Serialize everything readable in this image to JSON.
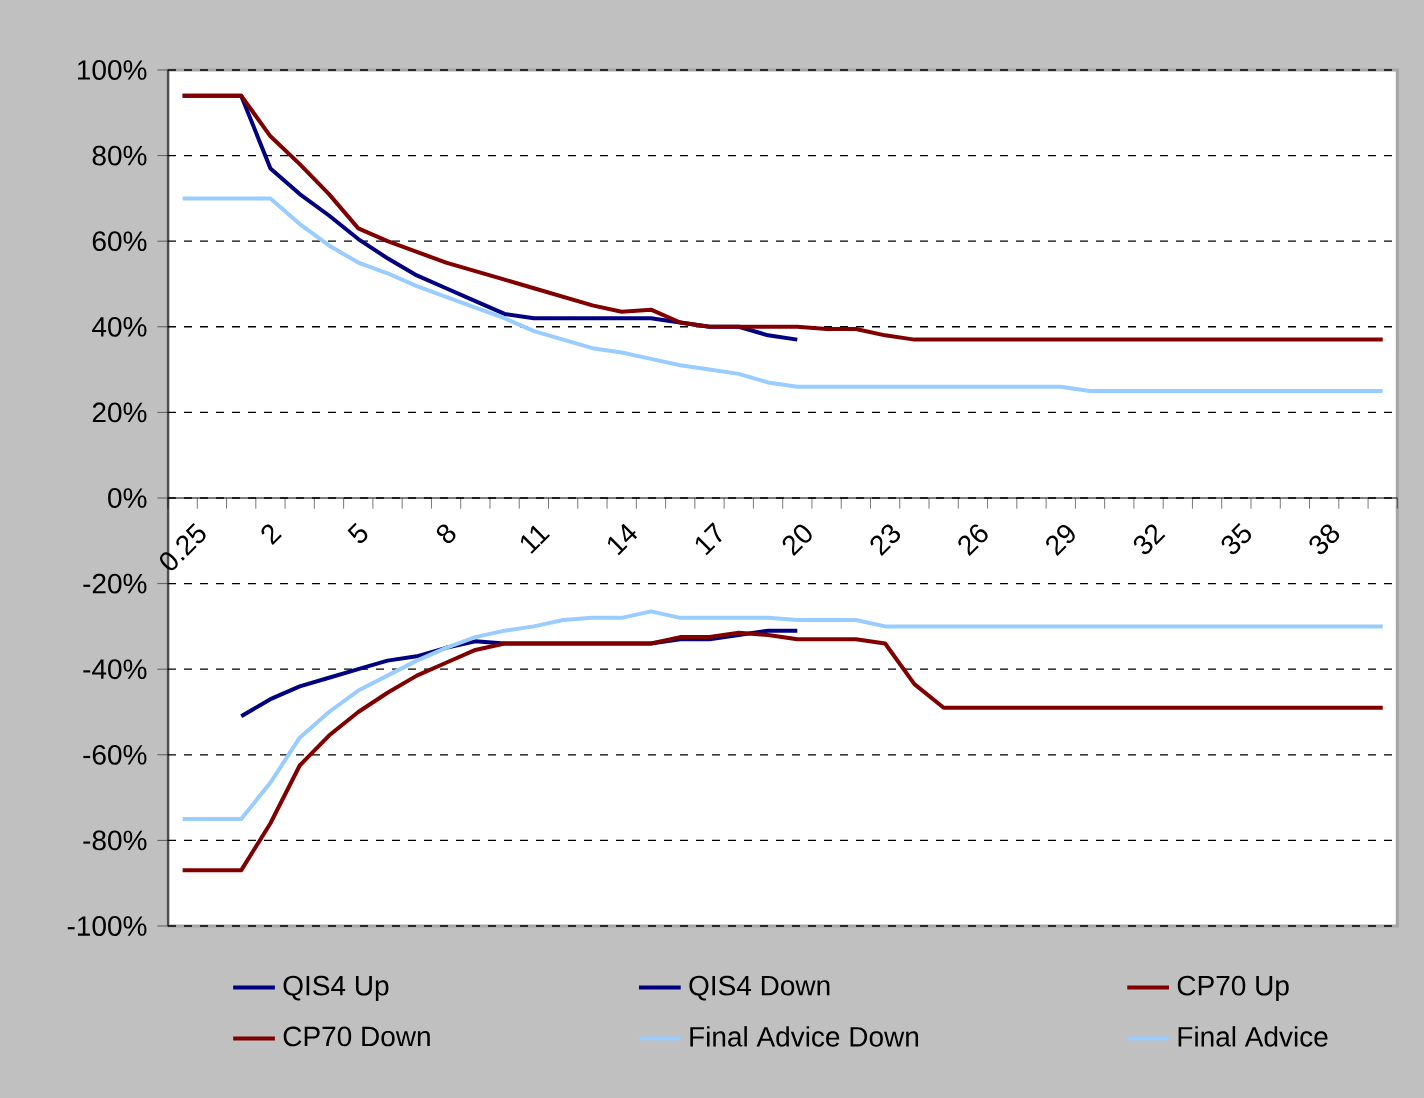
{
  "chart_data": {
    "type": "line",
    "categories": [
      "0.25",
      null,
      null,
      "2",
      null,
      null,
      "5",
      null,
      null,
      "8",
      null,
      null,
      "11",
      null,
      null,
      "14",
      null,
      null,
      "17",
      null,
      null,
      "20",
      null,
      null,
      "23",
      null,
      null,
      "26",
      null,
      null,
      "29",
      null,
      null,
      "32",
      null,
      null,
      "35",
      null,
      null,
      "38",
      null,
      null
    ],
    "series": [
      {
        "name": "QIS4 Up",
        "color": "#000080",
        "values": [
          94,
          94,
          94,
          77,
          71,
          66,
          60.5,
          56,
          52,
          49,
          46,
          43,
          42,
          42,
          42,
          42,
          42,
          41,
          40,
          40,
          38,
          37,
          null,
          null,
          null,
          null,
          null,
          null,
          null,
          null,
          null,
          null,
          null,
          null,
          null,
          null,
          null,
          null,
          null,
          null,
          null,
          null
        ]
      },
      {
        "name": "QIS4 Down",
        "color": "#000080",
        "values": [
          null,
          null,
          -51,
          -47,
          -44,
          -42,
          -40,
          -38,
          -37,
          -35,
          -33.5,
          -34,
          -34,
          -34,
          -34,
          -34,
          -34,
          -33,
          -33,
          -32,
          -31,
          -31,
          null,
          null,
          null,
          null,
          null,
          null,
          null,
          null,
          null,
          null,
          null,
          null,
          null,
          null,
          null,
          null,
          null,
          null,
          null,
          null
        ]
      },
      {
        "name": "CP70 Up",
        "color": "#800000",
        "values": [
          94,
          94,
          94,
          84.5,
          78,
          71,
          63,
          60,
          57.5,
          55,
          53,
          51,
          49,
          47,
          45,
          43.5,
          44,
          41,
          40,
          40,
          40,
          40,
          39.5,
          39.5,
          38,
          37,
          37,
          37,
          37,
          37,
          37,
          37,
          37,
          37,
          37,
          37,
          37,
          37,
          37,
          37,
          37,
          37
        ]
      },
      {
        "name": "CP70 Down",
        "color": "#800000",
        "values": [
          -87,
          -87,
          -87,
          -76,
          -62.5,
          -55.5,
          -50,
          -45.5,
          -41.5,
          -38.5,
          -35.5,
          -34,
          -34,
          -34,
          -34,
          -34,
          -34,
          -32.5,
          -32.5,
          -31.5,
          -32,
          -33,
          -33,
          -33,
          -34,
          -43.5,
          -49,
          -49,
          -49,
          -49,
          -49,
          -49,
          -49,
          -49,
          -49,
          -49,
          -49,
          -49,
          -49,
          -49,
          -49,
          -49
        ]
      },
      {
        "name": "Final Advice Down",
        "color": "#99ccff",
        "values": [
          -75,
          -75,
          -75,
          -66.5,
          -56,
          -50,
          -45,
          -41.5,
          -38,
          -35,
          -32.5,
          -31,
          -30,
          -28.5,
          -28,
          -28,
          -26.5,
          -28,
          -28,
          -28,
          -28,
          -28.5,
          -28.5,
          -28.5,
          -30,
          -30,
          -30,
          -30,
          -30,
          -30,
          -30,
          -30,
          -30,
          -30,
          -30,
          -30,
          -30,
          -30,
          -30,
          -30,
          -30,
          -30
        ]
      },
      {
        "name": "Final Advice",
        "color": "#99ccff",
        "values": [
          70,
          70,
          70,
          70,
          64,
          59,
          55,
          52.5,
          49.5,
          47,
          44.5,
          42,
          39,
          37,
          35,
          34,
          32.5,
          31,
          30,
          29,
          27,
          26,
          26,
          26,
          26,
          26,
          26,
          26,
          26,
          26,
          26,
          25,
          25,
          25,
          25,
          25,
          25,
          25,
          25,
          25,
          25,
          25
        ]
      }
    ],
    "ylim": [
      -100,
      100
    ],
    "yticks": [
      {
        "value": -100,
        "label": "-100%"
      },
      {
        "value": -80,
        "label": "-80%"
      },
      {
        "value": -60,
        "label": "-60%"
      },
      {
        "value": -40,
        "label": "-40%"
      },
      {
        "value": -20,
        "label": "-20%"
      },
      {
        "value": 0,
        "label": "0%"
      },
      {
        "value": 20,
        "label": "20%"
      },
      {
        "value": 40,
        "label": "40%"
      },
      {
        "value": 60,
        "label": "60%"
      },
      {
        "value": 80,
        "label": "80%"
      },
      {
        "value": 100,
        "label": "100%"
      }
    ],
    "grid": "y",
    "legend": "bottom",
    "marker": "none",
    "line_style": "solid"
  }
}
